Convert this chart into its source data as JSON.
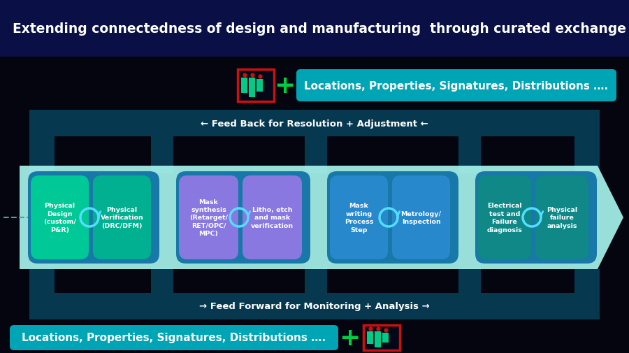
{
  "title": "Extending connectedness of design and manufacturing  through curated exchange",
  "title_color": "#ffffff",
  "title_bg": "#0a1045",
  "bg_color": "#050510",
  "feedback_text": "← Feed Back for Resolution + Adjustment ←",
  "feedforward_text": "→ Feed Forward for Monitoring + Analysis →",
  "bottom_label": "Locations, Properties, Signatures, Distributions ….",
  "top_label": "Locations, Properties, Signatures, Distributions ….",
  "loop_fill": "#063850",
  "loop_stroke": "#0a5070",
  "band_color": "#b0fff8",
  "groups": [
    {
      "bg": "#1a7aaa",
      "boxes": [
        {
          "text": "Physical\nDesign\n(custom/\nP&R)",
          "color": "#00c896"
        },
        {
          "text": "Physical\nVerification\n(DRC/DFM)",
          "color": "#00b090"
        }
      ]
    },
    {
      "bg": "#1a7aaa",
      "boxes": [
        {
          "text": "Mask\nsynthesis\n(Retarget/\nRET/OPC/\nMPC)",
          "color": "#8878e0"
        },
        {
          "text": "Litho, etch\nand mask\nverification",
          "color": "#8878e0"
        }
      ]
    },
    {
      "bg": "#1a7aaa",
      "boxes": [
        {
          "text": "Mask\nwriting\nProcess\nStep",
          "color": "#2888cc"
        },
        {
          "text": "Metrology/\nInspection",
          "color": "#2888cc"
        }
      ]
    },
    {
      "bg": "#1a7aaa",
      "boxes": [
        {
          "text": "Electrical\ntest and\nFailure\ndiagnosis",
          "color": "#108888"
        },
        {
          "text": "Physical\nfailure\nanalysis",
          "color": "#108888"
        }
      ]
    }
  ]
}
